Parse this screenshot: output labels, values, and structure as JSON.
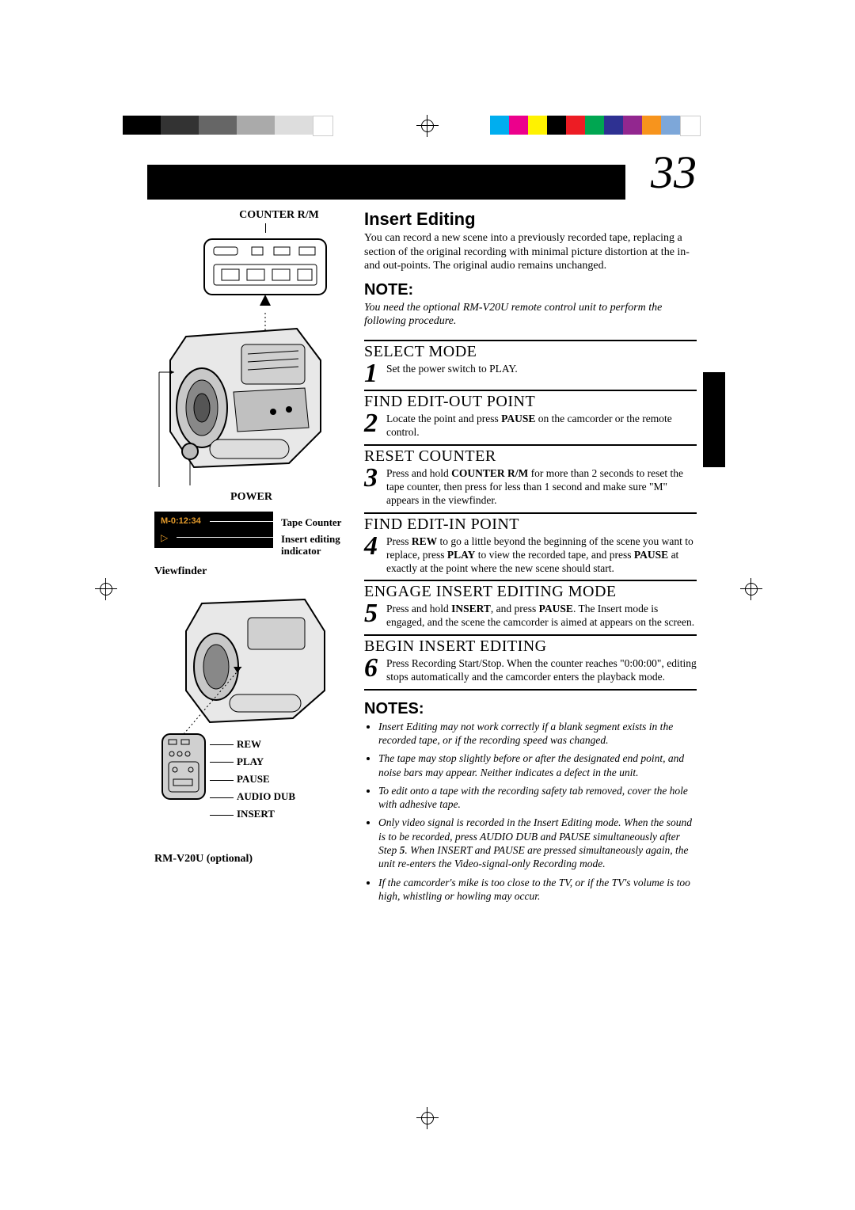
{
  "page_number": "33",
  "left": {
    "counter_rm": "COUNTER R/M",
    "power": "POWER",
    "tape_counter_code": "M-0:12:34",
    "tape_counter": "Tape Counter",
    "insert_indicator": "Insert editing indicator",
    "viewfinder": "Viewfinder",
    "remote_labels": [
      "REW",
      "PLAY",
      "PAUSE",
      "AUDIO DUB",
      "INSERT"
    ],
    "remote_name": "RM-V20U (optional)"
  },
  "section": {
    "title": "Insert Editing",
    "intro": "You can record a new scene into a previously recorded tape, replacing a section of the original recording with minimal picture distortion at the in- and out-points. The original audio remains unchanged.",
    "note_heading": "NOTE:",
    "note_body": "You need the optional RM-V20U remote control unit to perform the following procedure.",
    "steps": [
      {
        "n": "1",
        "title": "SELECT MODE",
        "text": "Set the power switch to PLAY."
      },
      {
        "n": "2",
        "title": "FIND EDIT-OUT POINT",
        "text": "Locate the point and press <strong>PAUSE</strong> on the camcorder or the remote control."
      },
      {
        "n": "3",
        "title": "RESET COUNTER",
        "text": "Press and hold <strong>COUNTER R/M</strong> for more than 2 seconds to reset the tape counter, then press for less than 1 second and make sure \"M\" appears in the viewfinder."
      },
      {
        "n": "4",
        "title": "FIND EDIT-IN POINT",
        "text": "Press <strong>REW</strong> to go a little beyond the beginning of the scene you want to replace, press <strong>PLAY</strong> to view the recorded tape, and press <strong>PAUSE</strong> at exactly at the point where the new scene should start."
      },
      {
        "n": "5",
        "title": "ENGAGE INSERT EDITING MODE",
        "text": "Press and hold <strong>INSERT</strong>, and press <strong>PAUSE</strong>. The Insert mode is engaged, and the scene the camcorder is aimed at appears on the screen."
      },
      {
        "n": "6",
        "title": "BEGIN INSERT EDITING",
        "text": "Press Recording Start/Stop. When the counter reaches \"0:00:00\", editing stops automatically and the camcorder enters the playback mode."
      }
    ],
    "notes_heading": "NOTES:",
    "notes": [
      "Insert Editing may not work correctly if a blank segment exists in the recorded tape, or if the recording speed was changed.",
      "The tape may stop slightly before or after the designated end point, and noise bars may appear. Neither indicates a defect in the unit.",
      "To edit onto a tape with the recording safety tab removed, cover the hole with adhesive tape.",
      "Only video signal is recorded in the Insert Editing mode. When the sound is to be recorded, press AUDIO DUB and PAUSE simultaneously after Step <strong>5</strong>. When INSERT and PAUSE are pressed simultaneously again, the unit re-enters the Video-signal-only Recording mode.",
      "If the camcorder's mike is too close to the TV, or if the TV's volume is too high, whistling or howling may occur."
    ]
  },
  "colors": {
    "left_bars": [
      "#000000",
      "#000000",
      "#333333",
      "#333333",
      "#666666",
      "#666666",
      "#aaaaaa",
      "#aaaaaa",
      "#dddddd",
      "#dddddd",
      "#ffffff"
    ],
    "right_bars": [
      "#00aeef",
      "#ec008c",
      "#fff200",
      "#000000",
      "#ed1c24",
      "#00a651",
      "#2e3192",
      "#92278f",
      "#f7941d",
      "#7da7d9",
      "#ffffff"
    ]
  }
}
